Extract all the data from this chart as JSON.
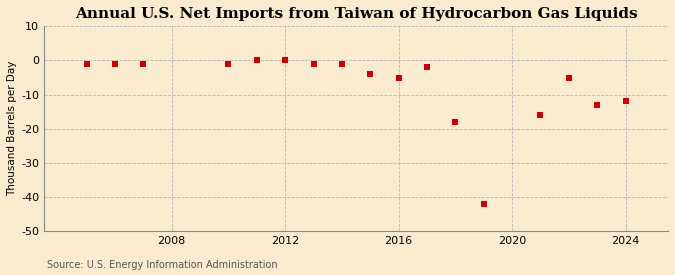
{
  "title": "Annual U.S. Net Imports from Taiwan of Hydrocarbon Gas Liquids",
  "ylabel": "Thousand Barrels per Day",
  "source": "Source: U.S. Energy Information Administration",
  "background_color": "#faebd0",
  "plot_bg_color": "#faebd0",
  "years": [
    2005,
    2006,
    2007,
    2010,
    2011,
    2012,
    2013,
    2014,
    2015,
    2016,
    2017,
    2018,
    2019,
    2021,
    2022,
    2023,
    2024
  ],
  "values": [
    -1,
    -1,
    -1,
    -1,
    0,
    0,
    -1,
    -1,
    -4,
    -5,
    -2,
    -18,
    -42,
    -16,
    -5,
    -13,
    -12
  ],
  "marker_color": "#cc0000",
  "marker_size": 16,
  "xlim": [
    2003.5,
    2025.5
  ],
  "ylim": [
    -50,
    10
  ],
  "yticks": [
    10,
    0,
    -10,
    -20,
    -30,
    -40,
    -50
  ],
  "xticks": [
    2008,
    2012,
    2016,
    2020,
    2024
  ],
  "grid_color": "#b0b0b0",
  "title_fontsize": 11,
  "tick_fontsize": 8,
  "ylabel_fontsize": 7.5,
  "source_fontsize": 7
}
